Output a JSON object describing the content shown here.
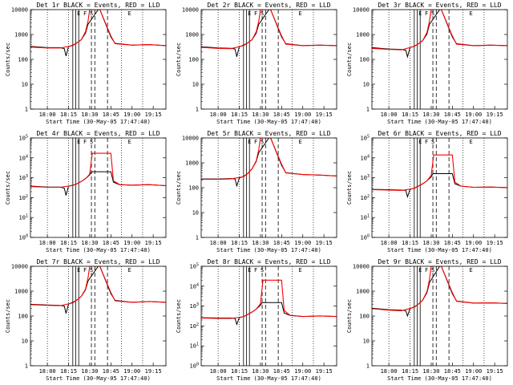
{
  "colors": {
    "events": "#000000",
    "lld": "#ff0000",
    "background": "#ffffff"
  },
  "chart_data": [
    {
      "type": "line",
      "scale": "log",
      "title": "Det 1r BLACK = Events, RED = LLD",
      "xlabel": "Start Time (30-May-05 17:47:40)",
      "ylabel": "Counts/sec",
      "xticks": [
        "18:00",
        "18:15",
        "18:30",
        "18:45",
        "19:00",
        "19:15"
      ],
      "yticks": [
        "1",
        "10",
        "100",
        "1000",
        "10000"
      ],
      "ylim": [
        1,
        12000
      ],
      "xlim": [
        17.8,
        19.4
      ],
      "markers": [
        "E",
        "F",
        "S",
        "E"
      ],
      "series": [
        {
          "name": "Events",
          "x": [
            17.8,
            18.0,
            18.15,
            18.2,
            18.22,
            18.25,
            18.3,
            18.35,
            18.4,
            18.45,
            18.48,
            18.6,
            18.62,
            18.75,
            18.8,
            19.0,
            19.2,
            19.4
          ],
          "y": [
            370,
            330,
            330,
            300,
            150,
            370,
            420,
            520,
            700,
            1300,
            3000,
            12000,
            12000,
            900,
            500,
            420,
            440,
            400
          ]
        },
        {
          "name": "LLD",
          "x": [
            17.8,
            18.0,
            18.15,
            18.3,
            18.35,
            18.4,
            18.45,
            18.48,
            18.5,
            18.6,
            18.62,
            18.75,
            18.8,
            19.0,
            19.2,
            19.4
          ],
          "y": [
            350,
            320,
            320,
            400,
            520,
            700,
            1500,
            4000,
            12000,
            12000,
            12000,
            1000,
            480,
            420,
            440,
            400
          ]
        }
      ]
    },
    {
      "type": "line",
      "scale": "log",
      "title": "Det 2r BLACK = Events, RED = LLD",
      "xlabel": "Start Time (30-May-05 17:47:40)",
      "ylabel": "Counts/sec",
      "xticks": [
        "18:00",
        "18:15",
        "18:30",
        "18:45",
        "19:00",
        "19:15"
      ],
      "yticks": [
        "1",
        "10",
        "100",
        "1000",
        "10000"
      ],
      "ylim": [
        1,
        12000
      ],
      "xlim": [
        17.8,
        19.4
      ],
      "markers": [
        "E",
        "F",
        "S",
        "E"
      ],
      "series": [
        {
          "name": "Events",
          "x": [
            17.8,
            18.0,
            18.15,
            18.2,
            18.22,
            18.25,
            18.3,
            18.35,
            18.4,
            18.45,
            18.48,
            18.6,
            18.62,
            18.75,
            18.8,
            19.0,
            19.2,
            19.4
          ],
          "y": [
            360,
            320,
            310,
            290,
            140,
            360,
            420,
            520,
            700,
            1300,
            3000,
            12000,
            12000,
            900,
            480,
            400,
            420,
            400
          ]
        },
        {
          "name": "LLD",
          "x": [
            17.8,
            18.0,
            18.15,
            18.3,
            18.35,
            18.4,
            18.45,
            18.48,
            18.5,
            18.6,
            18.62,
            18.75,
            18.8,
            19.0,
            19.2,
            19.4
          ],
          "y": [
            340,
            310,
            300,
            400,
            520,
            700,
            1500,
            4000,
            12000,
            12000,
            12000,
            1000,
            460,
            400,
            420,
            400
          ]
        }
      ]
    },
    {
      "type": "line",
      "scale": "log",
      "title": "Det 3r BLACK = Events, RED = LLD",
      "xlabel": "Start Time (30-May-05 17:47:40)",
      "ylabel": "Counts/sec",
      "xticks": [
        "18:00",
        "18:15",
        "18:30",
        "18:45",
        "19:00",
        "19:15"
      ],
      "yticks": [
        "1",
        "10",
        "100",
        "1000",
        "10000"
      ],
      "ylim": [
        1,
        12000
      ],
      "xlim": [
        17.8,
        19.4
      ],
      "markers": [
        "E",
        "F",
        "S",
        "E"
      ],
      "series": [
        {
          "name": "Events",
          "x": [
            17.8,
            18.0,
            18.15,
            18.2,
            18.22,
            18.25,
            18.3,
            18.35,
            18.4,
            18.45,
            18.48,
            18.6,
            18.62,
            18.75,
            18.8,
            19.0,
            19.2,
            19.4
          ],
          "y": [
            330,
            290,
            280,
            260,
            140,
            330,
            380,
            480,
            650,
            1200,
            3000,
            12000,
            12000,
            900,
            480,
            400,
            420,
            400
          ]
        },
        {
          "name": "LLD",
          "x": [
            17.8,
            18.0,
            18.15,
            18.3,
            18.35,
            18.4,
            18.45,
            18.48,
            18.5,
            18.6,
            18.62,
            18.75,
            18.8,
            19.0,
            19.2,
            19.4
          ],
          "y": [
            310,
            280,
            270,
            370,
            480,
            650,
            1400,
            4000,
            12000,
            12000,
            12000,
            1000,
            460,
            400,
            420,
            400
          ]
        }
      ]
    },
    {
      "type": "line",
      "scale": "log",
      "title": "Det 4r BLACK = Events, RED = LLD",
      "xlabel": "Start Time (30-May-05 17:47:40)",
      "ylabel": "Counts/sec",
      "xticks": [
        "18:00",
        "18:15",
        "18:30",
        "18:45",
        "19:00",
        "19:15"
      ],
      "yticks": [
        "10^0",
        "10^1",
        "10^2",
        "10^3",
        "10^4",
        "10^5"
      ],
      "ylim": [
        1,
        100000
      ],
      "xlim": [
        17.8,
        19.4
      ],
      "markers": [
        "E",
        "F",
        "S",
        "E"
      ],
      "series": [
        {
          "name": "Events",
          "x": [
            17.8,
            18.0,
            18.15,
            18.2,
            18.22,
            18.25,
            18.3,
            18.35,
            18.4,
            18.45,
            18.5,
            18.52,
            18.75,
            18.78,
            18.85,
            19.0,
            19.2,
            19.4
          ],
          "y": [
            380,
            340,
            340,
            300,
            130,
            380,
            420,
            500,
            650,
            900,
            1400,
            2000,
            2000,
            600,
            450,
            420,
            450,
            400
          ]
        },
        {
          "name": "LLD",
          "x": [
            17.8,
            18.0,
            18.15,
            18.3,
            18.35,
            18.4,
            18.45,
            18.5,
            18.53,
            18.75,
            18.78,
            18.85,
            19.0,
            19.2,
            19.4
          ],
          "y": [
            360,
            330,
            330,
            410,
            500,
            650,
            900,
            1500,
            17000,
            17000,
            700,
            460,
            420,
            450,
            400
          ]
        }
      ]
    },
    {
      "type": "line",
      "scale": "log",
      "title": "Det 5r BLACK = Events, RED = LLD",
      "xlabel": "Start Time (30-May-05 17:47:40)",
      "ylabel": "Counts/sec",
      "xticks": [
        "18:00",
        "18:15",
        "18:30",
        "18:45",
        "19:00",
        "19:15"
      ],
      "yticks": [
        "1",
        "10",
        "100",
        "1000",
        "10000"
      ],
      "ylim": [
        1,
        12000
      ],
      "xlim": [
        17.8,
        19.4
      ],
      "markers": [
        "E",
        "F",
        "S",
        "E"
      ],
      "series": [
        {
          "name": "Events",
          "x": [
            17.8,
            18.0,
            18.15,
            18.2,
            18.22,
            18.25,
            18.3,
            18.35,
            18.4,
            18.45,
            18.48,
            18.6,
            18.62,
            18.75,
            18.8,
            19.0,
            19.2,
            19.4
          ],
          "y": [
            250,
            250,
            260,
            250,
            130,
            270,
            320,
            420,
            650,
            1300,
            3000,
            12000,
            12000,
            900,
            450,
            380,
            360,
            330
          ]
        },
        {
          "name": "LLD",
          "x": [
            17.8,
            18.0,
            18.15,
            18.3,
            18.35,
            18.4,
            18.45,
            18.48,
            18.5,
            18.6,
            18.62,
            18.75,
            18.8,
            19.0,
            19.2,
            19.4
          ],
          "y": [
            240,
            240,
            250,
            310,
            420,
            650,
            1400,
            4000,
            12000,
            12000,
            12000,
            1000,
            440,
            380,
            360,
            330
          ]
        }
      ]
    },
    {
      "type": "line",
      "scale": "log",
      "title": "Det 6r BLACK = Events, RED = LLD",
      "xlabel": "Start Time (30-May-05 17:47:40)",
      "ylabel": "Counts/sec",
      "xticks": [
        "18:00",
        "18:15",
        "18:30",
        "18:45",
        "19:00",
        "19:15"
      ],
      "yticks": [
        "10^0",
        "10^1",
        "10^2",
        "10^3",
        "10^4",
        "10^5"
      ],
      "ylim": [
        1,
        100000
      ],
      "xlim": [
        17.8,
        19.4
      ],
      "markers": [
        "E",
        "F",
        "S",
        "E"
      ],
      "series": [
        {
          "name": "Events",
          "x": [
            17.8,
            18.0,
            18.15,
            18.2,
            18.22,
            18.25,
            18.3,
            18.35,
            18.4,
            18.45,
            18.5,
            18.52,
            18.75,
            18.78,
            18.85,
            19.0,
            19.2,
            19.4
          ],
          "y": [
            260,
            250,
            240,
            230,
            110,
            260,
            300,
            380,
            500,
            700,
            1100,
            1600,
            1600,
            500,
            380,
            330,
            340,
            320
          ]
        },
        {
          "name": "LLD",
          "x": [
            17.8,
            18.0,
            18.15,
            18.3,
            18.35,
            18.4,
            18.45,
            18.5,
            18.53,
            18.75,
            18.78,
            18.85,
            19.0,
            19.2,
            19.4
          ],
          "y": [
            250,
            240,
            230,
            290,
            380,
            500,
            700,
            1300,
            14000,
            14000,
            600,
            380,
            330,
            340,
            320
          ]
        }
      ]
    },
    {
      "type": "line",
      "scale": "log",
      "title": "Det 7r BLACK = Events, RED = LLD",
      "xlabel": "Start Time (30-May-05 17:47:40)",
      "ylabel": "Counts/sec",
      "xticks": [
        "18:00",
        "18:15",
        "18:30",
        "18:45",
        "19:00",
        "19:15"
      ],
      "yticks": [
        "1",
        "10",
        "100",
        "1000",
        "10000"
      ],
      "ylim": [
        1,
        12000
      ],
      "xlim": [
        17.8,
        19.4
      ],
      "markers": [
        "E",
        "F",
        "S",
        "E"
      ],
      "series": [
        {
          "name": "Events",
          "x": [
            17.8,
            18.0,
            18.15,
            18.2,
            18.22,
            18.25,
            18.3,
            18.35,
            18.4,
            18.45,
            18.48,
            18.6,
            18.62,
            18.75,
            18.8,
            19.0,
            19.2,
            19.4
          ],
          "y": [
            330,
            310,
            300,
            280,
            140,
            340,
            400,
            500,
            700,
            1300,
            3000,
            12000,
            12000,
            900,
            480,
            400,
            430,
            400
          ]
        },
        {
          "name": "LLD",
          "x": [
            17.8,
            18.0,
            18.15,
            18.3,
            18.35,
            18.4,
            18.45,
            18.48,
            18.5,
            18.6,
            18.62,
            18.75,
            18.8,
            19.0,
            19.2,
            19.4
          ],
          "y": [
            320,
            300,
            290,
            380,
            500,
            700,
            1400,
            4000,
            12000,
            12000,
            12000,
            1000,
            460,
            400,
            430,
            400
          ]
        }
      ]
    },
    {
      "type": "line",
      "scale": "log",
      "title": "Det 8r BLACK = Events, RED = LLD",
      "xlabel": "Start Time (30-May-05 17:47:40)",
      "ylabel": "Counts/sec",
      "xticks": [
        "18:00",
        "18:15",
        "18:30",
        "18:45",
        "19:00",
        "19:15"
      ],
      "yticks": [
        "10^0",
        "10^1",
        "10^2",
        "10^3",
        "10^4",
        "10^5"
      ],
      "ylim": [
        1,
        100000
      ],
      "xlim": [
        17.8,
        19.4
      ],
      "markers": [
        "E",
        "F",
        "S",
        "E"
      ],
      "series": [
        {
          "name": "Events",
          "x": [
            17.8,
            18.0,
            18.15,
            18.2,
            18.22,
            18.25,
            18.3,
            18.35,
            18.4,
            18.45,
            18.5,
            18.52,
            18.75,
            18.78,
            18.85,
            19.0,
            19.2,
            19.4
          ],
          "y": [
            260,
            250,
            250,
            240,
            120,
            260,
            300,
            380,
            500,
            700,
            1100,
            1500,
            1500,
            450,
            340,
            300,
            320,
            300
          ]
        },
        {
          "name": "LLD",
          "x": [
            17.8,
            18.0,
            18.15,
            18.3,
            18.35,
            18.4,
            18.45,
            18.5,
            18.53,
            18.75,
            18.78,
            18.85,
            19.0,
            19.2,
            19.4
          ],
          "y": [
            250,
            240,
            240,
            290,
            380,
            500,
            700,
            1300,
            20000,
            20000,
            600,
            340,
            300,
            320,
            300
          ]
        }
      ]
    },
    {
      "type": "line",
      "scale": "log",
      "title": "Det 9r BLACK = Events, RED = LLD",
      "xlabel": "Start Time (30-May-05 17:47:40)",
      "ylabel": "Counts/sec",
      "xticks": [
        "18:00",
        "18:15",
        "18:30",
        "18:45",
        "19:00",
        "19:15"
      ],
      "yticks": [
        "1",
        "10",
        "100",
        "1000",
        "10000"
      ],
      "ylim": [
        1,
        12000
      ],
      "xlim": [
        17.8,
        19.4
      ],
      "markers": [
        "E",
        "F",
        "S",
        "E"
      ],
      "series": [
        {
          "name": "Events",
          "x": [
            17.8,
            18.0,
            18.15,
            18.2,
            18.22,
            18.25,
            18.3,
            18.35,
            18.4,
            18.45,
            18.48,
            18.6,
            18.62,
            18.75,
            18.8,
            19.0,
            19.2,
            19.4
          ],
          "y": [
            230,
            200,
            190,
            180,
            110,
            220,
            260,
            340,
            500,
            1000,
            2600,
            12000,
            12000,
            900,
            450,
            370,
            380,
            360
          ]
        },
        {
          "name": "LLD",
          "x": [
            17.8,
            18.0,
            18.15,
            18.3,
            18.35,
            18.4,
            18.45,
            18.48,
            18.5,
            18.6,
            18.62,
            18.75,
            18.8,
            19.0,
            19.2,
            19.4
          ],
          "y": [
            220,
            190,
            180,
            250,
            340,
            500,
            1100,
            3500,
            12000,
            12000,
            12000,
            1000,
            440,
            370,
            380,
            360
          ]
        }
      ]
    }
  ]
}
